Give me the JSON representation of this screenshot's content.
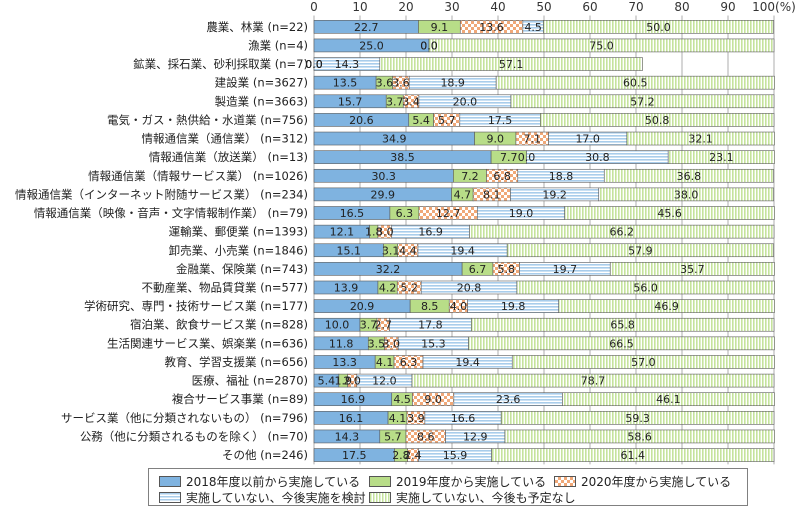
{
  "chart_data": {
    "type": "bar",
    "orientation": "horizontal",
    "stacked": true,
    "xlim": [
      0,
      100
    ],
    "x_ticks": [
      "0",
      "10",
      "20",
      "30",
      "40",
      "50",
      "60",
      "70",
      "80",
      "90",
      "100(%)"
    ],
    "grid": true,
    "legend_position": "bottom",
    "categories": [
      "農業、林業 (n=22)",
      "漁業 (n=4)",
      "鉱業、採石業、砂利採取業 (n=7)",
      "建設業 (n=3627)",
      "製造業 (n=3663)",
      "電気・ガス・熱供給・水道業 (n=756)",
      "情報通信業（通信業） (n=312)",
      "情報通信業（放送業） (n=13)",
      "情報通信業（情報サービス業） (n=1026)",
      "情報通信業（インターネット附随サービス業） (n=234)",
      "情報通信業（映像・音声・文字情報制作業） (n=79)",
      "運輸業、郵便業 (n=1393)",
      "卸売業、小売業 (n=1846)",
      "金融業、保険業 (n=743)",
      "不動産業、物品賃貸業 (n=577)",
      "学術研究、専門・技術サービス業 (n=177)",
      "宿泊業、飲食サービス業 (n=828)",
      "生活関連サービス業、娯楽業 (n=636)",
      "教育、学習支援業 (n=656)",
      "医療、福祉 (n=2870)",
      "複合サービス事業 (n=89)",
      "サービス業（他に分類されないもの） (n=796)",
      "公務（他に分類されるものを除く） (n=70)",
      "その他 (n=246)"
    ],
    "series": [
      {
        "name": "2018年度以前から実施している",
        "color": "#7fb3e0",
        "pattern": "solid",
        "values": [
          22.7,
          25.0,
          0.0,
          13.5,
          15.7,
          20.6,
          34.9,
          38.5,
          30.3,
          29.9,
          16.5,
          12.1,
          15.1,
          32.2,
          13.9,
          20.9,
          10.0,
          11.8,
          13.3,
          5.4,
          16.9,
          16.1,
          14.3,
          17.5
        ]
      },
      {
        "name": "2019年度から実施している",
        "color": "#b8dd88",
        "pattern": "solid",
        "values": [
          9.1,
          0.0,
          0.0,
          3.6,
          3.7,
          5.4,
          9.0,
          7.7,
          7.2,
          4.7,
          6.3,
          1.8,
          3.1,
          6.7,
          4.2,
          8.5,
          3.7,
          3.5,
          4.1,
          1.9,
          4.5,
          4.1,
          5.7,
          2.8
        ]
      },
      {
        "name": "2020年度から実施している",
        "color": "#f0a878",
        "pattern": "checker",
        "values": [
          13.6,
          0.0,
          0.0,
          3.6,
          3.4,
          5.7,
          7.1,
          0.0,
          6.8,
          8.1,
          12.7,
          3.0,
          4.4,
          5.8,
          5.2,
          4.0,
          2.7,
          3.0,
          6.3,
          2.0,
          9.0,
          3.9,
          8.6,
          2.4
        ]
      },
      {
        "name": "実施していない、今後実施を検討",
        "color": "#a9cdeb",
        "pattern": "hstripe",
        "values": [
          4.5,
          0.0,
          14.3,
          18.9,
          20.0,
          17.5,
          17.0,
          30.8,
          18.8,
          19.2,
          19.0,
          16.9,
          19.4,
          19.7,
          20.8,
          19.8,
          17.8,
          15.3,
          19.4,
          12.0,
          23.6,
          16.6,
          12.9,
          15.9
        ]
      },
      {
        "name": "実施していない、今後も予定なし",
        "color": "#cde6a8",
        "pattern": "vstripe",
        "values": [
          50.0,
          75.0,
          57.1,
          60.5,
          57.2,
          50.8,
          32.1,
          23.1,
          36.8,
          38.0,
          45.6,
          66.2,
          57.9,
          35.7,
          56.0,
          46.9,
          65.8,
          66.5,
          57.0,
          78.7,
          46.1,
          59.3,
          58.6,
          61.4
        ]
      }
    ],
    "labels": [
      [
        "22.7",
        "9.1",
        "13.6",
        "4.5",
        "50.0"
      ],
      [
        "25.0",
        "0.0",
        "0.0",
        "",
        "75.0"
      ],
      [
        "0.0",
        "0.0",
        "0.0",
        "14.3",
        "57.1"
      ],
      [
        "13.5",
        "3.6",
        "3.6",
        "18.9",
        "60.5"
      ],
      [
        "15.7",
        "3.7",
        "3.4",
        "20.0",
        "57.2"
      ],
      [
        "20.6",
        "5.4",
        "5.7",
        "17.5",
        "50.8"
      ],
      [
        "34.9",
        "9.0",
        "7.1",
        "17.0",
        "32.1"
      ],
      [
        "38.5",
        "7.7",
        "0.0",
        "30.8",
        "23.1"
      ],
      [
        "30.3",
        "7.2",
        "6.8",
        "18.8",
        "36.8"
      ],
      [
        "29.9",
        "4.7",
        "8.1",
        "19.2",
        "38.0"
      ],
      [
        "16.5",
        "6.3",
        "12.7",
        "19.0",
        "45.6"
      ],
      [
        "12.1",
        "1.8",
        "3.0",
        "16.9",
        "66.2"
      ],
      [
        "15.1",
        "3.1",
        "4.4",
        "19.4",
        "57.9"
      ],
      [
        "32.2",
        "6.7",
        "5.8",
        "19.7",
        "35.7"
      ],
      [
        "13.9",
        "4.2",
        "5.2",
        "20.8",
        "56.0"
      ],
      [
        "20.9",
        "8.5",
        "4.0",
        "19.8",
        "46.9"
      ],
      [
        "10.0",
        "3.7",
        "2.7",
        "17.8",
        "65.8"
      ],
      [
        "11.8",
        "3.5",
        "3.0",
        "15.3",
        "66.5"
      ],
      [
        "13.3",
        "4.1",
        "6.3",
        "19.4",
        "57.0"
      ],
      [
        "5.4",
        "1.9",
        "2.0",
        "12.0",
        "78.7"
      ],
      [
        "16.9",
        "4.5",
        "9.0",
        "23.6",
        "46.1"
      ],
      [
        "16.1",
        "4.1",
        "3.9",
        "16.6",
        "59.3"
      ],
      [
        "14.3",
        "5.7",
        "8.6",
        "12.9",
        "58.6"
      ],
      [
        "17.5",
        "2.8",
        "2.4",
        "15.9",
        "61.4"
      ]
    ]
  }
}
